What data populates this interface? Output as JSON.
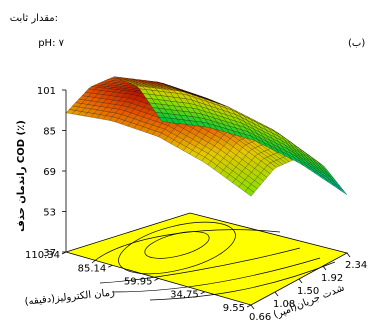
{
  "chart_data": {
    "type": "surface",
    "panel_label": "(ب)",
    "constant_label": "مقدار ثابت:",
    "constant_value": "pH: ۷",
    "xlabel": "شدت جریان(آمپر)",
    "ylabel": "زمان الکترولیز(دقیقه)",
    "zlabel": "راندمان حذف COD (٪)",
    "x_ticks": [
      "0.66",
      "1.08",
      "1.50",
      "1.92",
      "2.34"
    ],
    "y_ticks": [
      "9.55",
      "34.75",
      "59.95",
      "85.14",
      "110.34"
    ],
    "z_ticks": [
      "37",
      "53",
      "69",
      "85",
      "101"
    ],
    "xlim": [
      0.66,
      2.34
    ],
    "ylim": [
      9.55,
      110.34
    ],
    "zlim": [
      37,
      101
    ],
    "surface": {
      "x": [
        0.66,
        1.08,
        1.5,
        1.92,
        2.34
      ],
      "y": [
        9.55,
        34.75,
        59.95,
        85.14,
        110.34
      ],
      "z": [
        [
          80,
          86,
          85,
          77,
          60
        ],
        [
          88,
          94,
          93,
          85,
          67
        ],
        [
          93,
          99,
          98,
          89,
          71
        ],
        [
          94,
          100,
          99,
          90,
          71
        ],
        [
          92,
          97,
          96,
          87,
          68
        ]
      ]
    },
    "floor_contour_color": "#ffff00"
  }
}
